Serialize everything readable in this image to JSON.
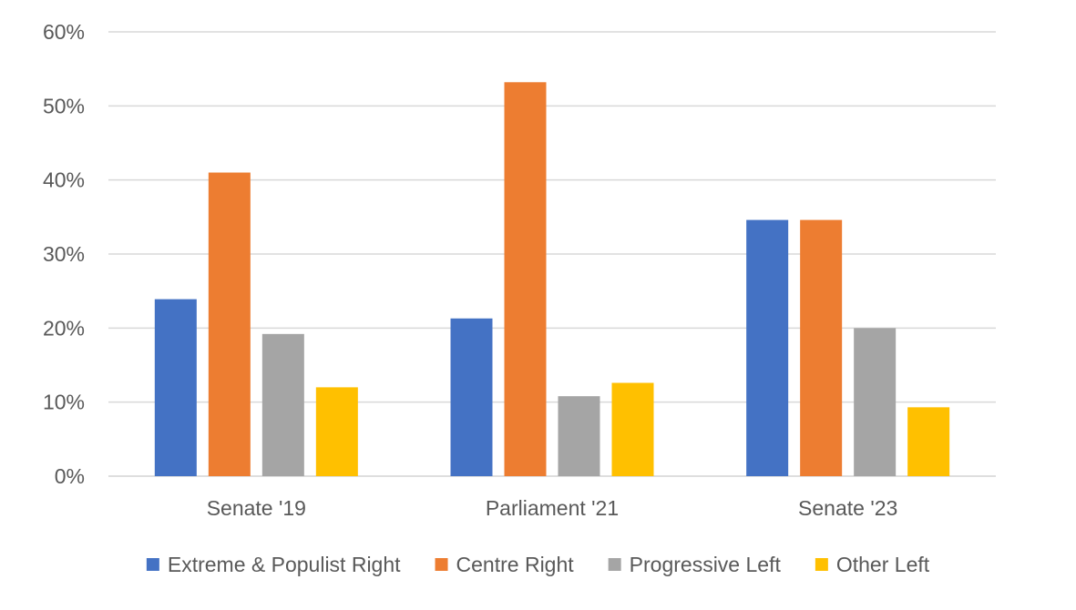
{
  "chart_data": {
    "type": "bar",
    "title": "",
    "xlabel": "",
    "ylabel": "",
    "categories": [
      "Senate '19",
      "Parliament '21",
      "Senate '23"
    ],
    "series": [
      {
        "name": "Extreme & Populist Right",
        "color": "#4472C4",
        "values": [
          23.9,
          21.3,
          34.6
        ]
      },
      {
        "name": "Centre Right",
        "color": "#ED7D31",
        "values": [
          41.0,
          53.2,
          34.6
        ]
      },
      {
        "name": "Progressive Left",
        "color": "#A5A5A5",
        "values": [
          19.2,
          10.8,
          20.0
        ]
      },
      {
        "name": "Other Left",
        "color": "#FFC000",
        "values": [
          12.0,
          12.6,
          9.3
        ]
      }
    ],
    "ylim": [
      0,
      60
    ],
    "yticks": [
      0,
      10,
      20,
      30,
      40,
      50,
      60
    ],
    "ytick_labels": [
      "0%",
      "10%",
      "20%",
      "30%",
      "40%",
      "50%",
      "60%"
    ],
    "grid": true,
    "legend": "bottom"
  }
}
